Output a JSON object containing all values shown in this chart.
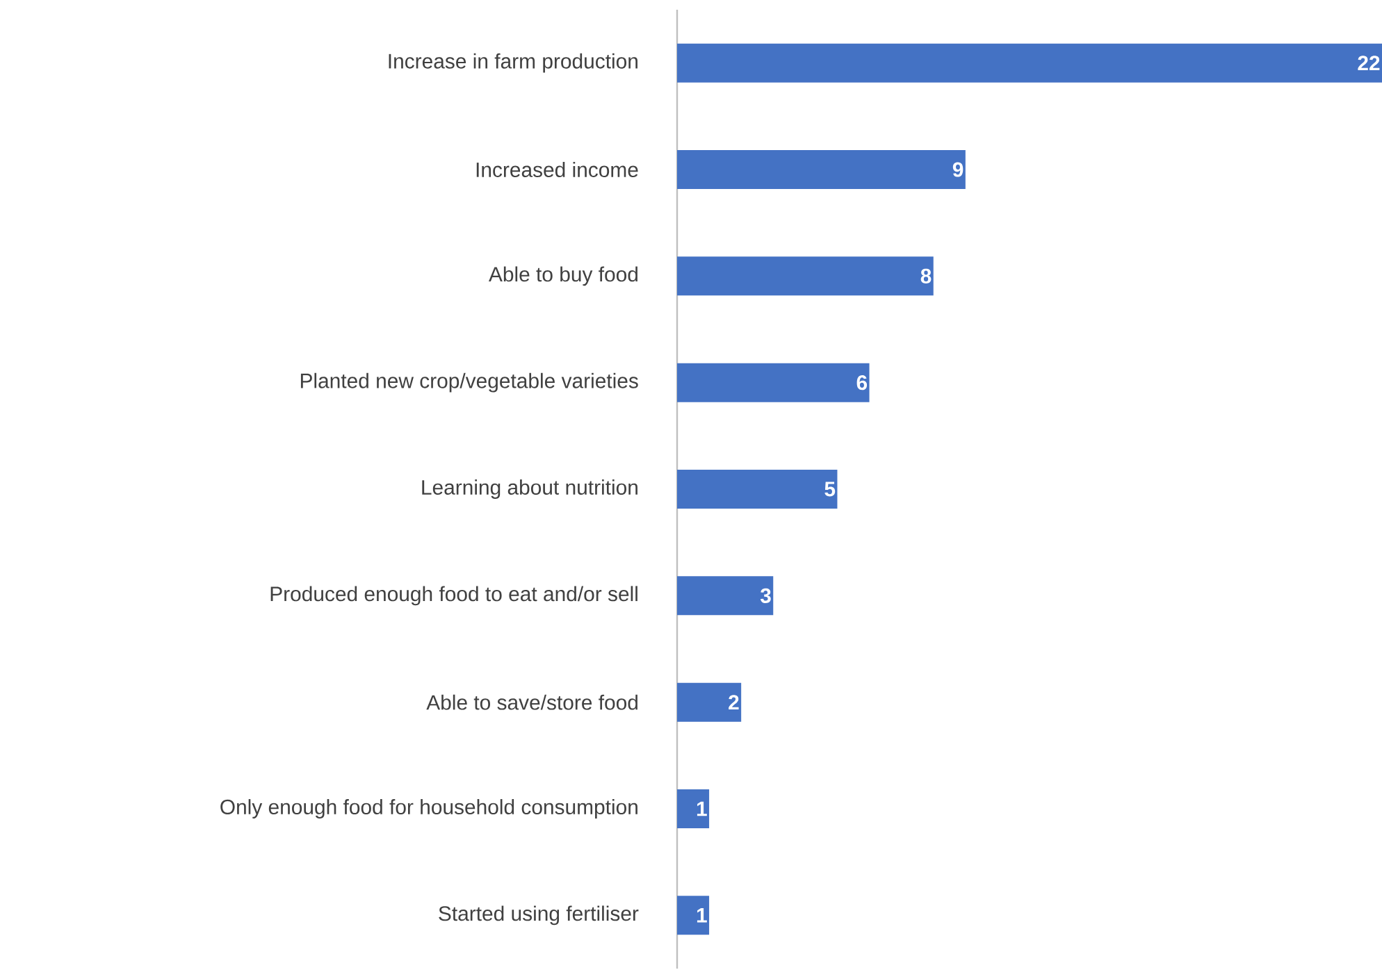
{
  "chart_data": {
    "type": "bar",
    "orientation": "horizontal",
    "categories": [
      "Increase in farm production",
      "Increased income",
      "Able to buy food",
      "Planted new crop/vegetable varieties",
      "Learning about nutrition",
      "Produced enough food to eat and/or sell",
      "Able to save/store food",
      "Only enough food for household consumption",
      "Started using fertiliser"
    ],
    "values": [
      22,
      9,
      8,
      6,
      5,
      3,
      2,
      1,
      1
    ],
    "color": "#4472c4",
    "data_labels": true
  }
}
